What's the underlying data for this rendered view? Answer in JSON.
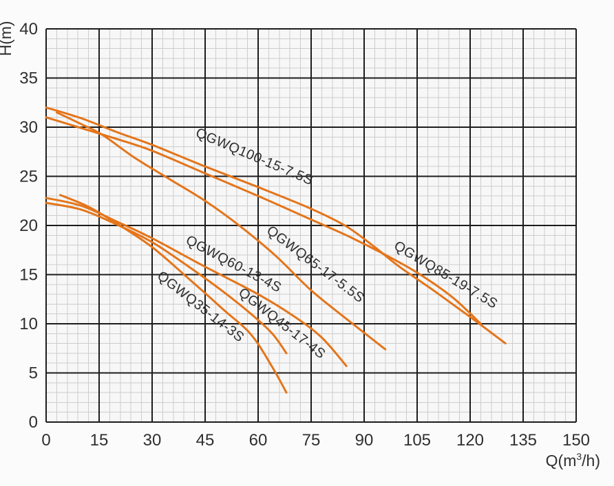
{
  "page": {
    "background": "#fbfbfb"
  },
  "chart_data": {
    "type": "line",
    "title": "",
    "xlabel": "Q(m³/h)",
    "xlabel_parts": {
      "pre": "Q(m",
      "sup": "3",
      "post": "/h)"
    },
    "ylabel": "H(m)",
    "xlim": [
      0,
      150
    ],
    "ylim": [
      0,
      40
    ],
    "x_ticks": [
      0,
      15,
      30,
      45,
      60,
      75,
      90,
      105,
      120,
      135,
      150
    ],
    "y_ticks": [
      0,
      5,
      10,
      15,
      20,
      25,
      30,
      35,
      40
    ],
    "x_minor_step": 3,
    "y_minor_step": 1,
    "grid": "major+minor",
    "legend_position": "inline-rotated-labels",
    "colors": {
      "curve": "#e4751a",
      "major_grid": "#1c1c1c",
      "minor_grid": "#cccccc",
      "plot_background": "#f7f7f7",
      "tick_text": "#2f2f2f",
      "curve_label_text": "#3a3a3a"
    },
    "series": [
      {
        "name": "QGWQ100-15-7.5S",
        "points": [
          [
            0,
            32
          ],
          [
            10,
            30.9
          ],
          [
            20,
            29.5
          ],
          [
            30,
            28.2
          ],
          [
            45,
            26.0
          ],
          [
            60,
            23.9
          ],
          [
            75,
            21.7
          ],
          [
            85,
            19.9
          ],
          [
            93,
            17.8
          ],
          [
            100,
            15.8
          ],
          [
            110,
            13.3
          ],
          [
            120,
            10.7
          ],
          [
            130,
            8.0
          ]
        ],
        "label": {
          "text": "QGWQ100-15-7.5S",
          "q": 58.5,
          "h": 26.6,
          "angle": 23
        }
      },
      {
        "name": "QGWQ85-19-7.5S",
        "points": [
          [
            0,
            31.0
          ],
          [
            10,
            29.9
          ],
          [
            20,
            28.8
          ],
          [
            30,
            27.6
          ],
          [
            45,
            25.3
          ],
          [
            60,
            23.0
          ],
          [
            75,
            20.6
          ],
          [
            85,
            19.0
          ],
          [
            95,
            17.2
          ],
          [
            105,
            15.2
          ],
          [
            115,
            12.7
          ],
          [
            123,
            10.0
          ]
        ],
        "label": {
          "text": "QGWQ85-19-7.5S",
          "q": 112.5,
          "h": 14.6,
          "angle": 31
        }
      },
      {
        "name": "QGWQ65-17-5.5S",
        "points": [
          [
            3,
            31.5
          ],
          [
            10,
            30.3
          ],
          [
            16,
            29.2
          ],
          [
            25,
            26.9
          ],
          [
            35,
            24.7
          ],
          [
            45,
            22.5
          ],
          [
            55,
            19.9
          ],
          [
            65,
            16.9
          ],
          [
            75,
            13.4
          ],
          [
            85,
            10.5
          ],
          [
            96,
            7.4
          ]
        ],
        "label": {
          "text": "QGWQ65-17-5.5S",
          "q": 75.5,
          "h": 15.7,
          "angle": 37
        }
      },
      {
        "name": "QGWQ60-13-4S",
        "points": [
          [
            0,
            22.8
          ],
          [
            10,
            22.0
          ],
          [
            20,
            20.4
          ],
          [
            30,
            18.7
          ],
          [
            45,
            15.8
          ],
          [
            60,
            13.0
          ],
          [
            70,
            10.8
          ],
          [
            78,
            8.6
          ],
          [
            85,
            5.7
          ]
        ],
        "label": {
          "text": "QGWQ60-13-4S",
          "q": 52.5,
          "h": 15.7,
          "angle": 28
        }
      },
      {
        "name": "QGWQ45-17-4S",
        "points": [
          [
            0,
            22.3
          ],
          [
            10,
            21.6
          ],
          [
            20,
            20.1
          ],
          [
            30,
            18.3
          ],
          [
            40,
            15.9
          ],
          [
            50,
            13.3
          ],
          [
            58,
            11.0
          ],
          [
            64,
            9.0
          ],
          [
            68,
            7.0
          ]
        ],
        "label": {
          "text": "QGWQ45-17-4S",
          "q": 66,
          "h": 9.7,
          "angle": 38
        }
      },
      {
        "name": "QGWQ35-14-3S",
        "points": [
          [
            4,
            23.1
          ],
          [
            12,
            21.9
          ],
          [
            20,
            20.2
          ],
          [
            30,
            17.8
          ],
          [
            40,
            14.7
          ],
          [
            50,
            11.5
          ],
          [
            58,
            8.9
          ],
          [
            64,
            5.6
          ],
          [
            68,
            3.0
          ]
        ],
        "label": {
          "text": "QGWQ35-14-3S",
          "q": 43,
          "h": 11.4,
          "angle": 38
        }
      }
    ]
  }
}
